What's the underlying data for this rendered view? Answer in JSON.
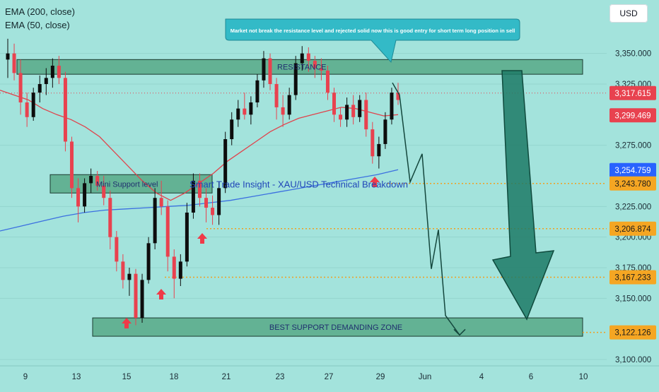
{
  "legend": {
    "ema200": "EMA (200, close)",
    "ema50": "EMA (50, close)"
  },
  "currency": "USD",
  "colors": {
    "background": "#a3e3dc",
    "bull_candle": "#0d0d0d",
    "bear_candle": "#e8424f",
    "ema200": "#3b6fe0",
    "ema50": "#e0434c",
    "zone_fill": "#2f8a5a",
    "projection_line": "#14473d",
    "big_arrow": "#1d7a66",
    "signal_arrow": "#ef3a48",
    "level_dotted": "#f0a020",
    "callout_bg": "#33bac7"
  },
  "chart_data": {
    "type": "candlestick",
    "annotations": {
      "callout": "Market not break the resistance level and rejected solid now this is good entry for short term long position in sell",
      "resistance_zone": "RESISTANCE",
      "mini_support_zone": "Mini Support level",
      "best_support_zone": "BEST SUPPORT DEMANDING ZONE",
      "title_overlay": "Smart Trade Insight - XAU/USD Technical Breakdown"
    },
    "y_axis": {
      "range": [
        3085,
        3385
      ],
      "ticks": [
        "3,350.000",
        "3,325.000",
        "3,275.000",
        "3,225.000",
        "3,200.000",
        "3,175.000",
        "3,150.000",
        "3,100.000"
      ],
      "tick_values": [
        3350,
        3325,
        3275,
        3225,
        3200,
        3175,
        3150,
        3100
      ]
    },
    "x_axis": {
      "ticks": [
        "9",
        "13",
        "15",
        "18",
        "21",
        "23",
        "27",
        "29",
        "Jun",
        "4",
        "6",
        "10"
      ]
    },
    "price_labels": [
      {
        "text": "3,317.615",
        "value": 3317.615,
        "color": "#e8424f"
      },
      {
        "text": "3,299.469",
        "value": 3299.469,
        "color": "#e8424f"
      },
      {
        "text": "3,254.759",
        "value": 3254.759,
        "color": "#2962ff"
      },
      {
        "text": "3,243.780",
        "value": 3243.78,
        "color": "#f5a623"
      },
      {
        "text": "3,206.874",
        "value": 3206.874,
        "color": "#f5a623"
      },
      {
        "text": "3,167.233",
        "value": 3167.233,
        "color": "#f5a623"
      },
      {
        "text": "3,122.126",
        "value": 3122.126,
        "color": "#f5a623"
      }
    ],
    "zones": [
      {
        "name": "resistance",
        "from": 3345,
        "to": 3333
      },
      {
        "name": "mini_support",
        "from": 3251,
        "to": 3236
      },
      {
        "name": "best_support",
        "from": 3134,
        "to": 3119
      }
    ],
    "candles": [
      [
        3345,
        3362,
        3330,
        3350
      ],
      [
        3350,
        3358,
        3328,
        3334
      ],
      [
        3334,
        3345,
        3300,
        3310
      ],
      [
        3310,
        3318,
        3290,
        3298
      ],
      [
        3298,
        3322,
        3295,
        3318
      ],
      [
        3318,
        3332,
        3310,
        3325
      ],
      [
        3325,
        3338,
        3316,
        3330
      ],
      [
        3330,
        3346,
        3322,
        3340
      ],
      [
        3340,
        3348,
        3325,
        3330
      ],
      [
        3330,
        3335,
        3270,
        3278
      ],
      [
        3278,
        3282,
        3232,
        3240
      ],
      [
        3240,
        3248,
        3212,
        3225
      ],
      [
        3225,
        3248,
        3220,
        3244
      ],
      [
        3244,
        3256,
        3236,
        3250
      ],
      [
        3250,
        3254,
        3238,
        3242
      ],
      [
        3242,
        3250,
        3226,
        3232
      ],
      [
        3232,
        3238,
        3190,
        3200
      ],
      [
        3200,
        3205,
        3172,
        3180
      ],
      [
        3180,
        3186,
        3158,
        3165
      ],
      [
        3165,
        3175,
        3152,
        3170
      ],
      [
        3170,
        3174,
        3128,
        3134
      ],
      [
        3134,
        3170,
        3130,
        3165
      ],
      [
        3165,
        3200,
        3162,
        3195
      ],
      [
        3195,
        3240,
        3190,
        3232
      ],
      [
        3232,
        3246,
        3218,
        3225
      ],
      [
        3225,
        3230,
        3172,
        3184
      ],
      [
        3184,
        3190,
        3150,
        3166
      ],
      [
        3166,
        3186,
        3160,
        3180
      ],
      [
        3180,
        3228,
        3176,
        3220
      ],
      [
        3220,
        3252,
        3215,
        3246
      ],
      [
        3246,
        3252,
        3225,
        3232
      ],
      [
        3232,
        3240,
        3212,
        3224
      ],
      [
        3224,
        3234,
        3210,
        3218
      ],
      [
        3218,
        3245,
        3210,
        3240
      ],
      [
        3240,
        3286,
        3236,
        3280
      ],
      [
        3280,
        3302,
        3275,
        3296
      ],
      [
        3296,
        3312,
        3290,
        3305
      ],
      [
        3305,
        3318,
        3296,
        3300
      ],
      [
        3300,
        3315,
        3292,
        3310
      ],
      [
        3310,
        3333,
        3306,
        3328
      ],
      [
        3328,
        3352,
        3322,
        3346
      ],
      [
        3346,
        3350,
        3320,
        3325
      ],
      [
        3325,
        3330,
        3296,
        3306
      ],
      [
        3306,
        3316,
        3290,
        3300
      ],
      [
        3300,
        3322,
        3296,
        3316
      ],
      [
        3316,
        3348,
        3312,
        3342
      ],
      [
        3342,
        3356,
        3336,
        3350
      ],
      [
        3350,
        3355,
        3335,
        3344
      ],
      [
        3344,
        3348,
        3330,
        3338
      ],
      [
        3338,
        3346,
        3328,
        3336
      ],
      [
        3336,
        3340,
        3312,
        3318
      ],
      [
        3318,
        3322,
        3294,
        3300
      ],
      [
        3300,
        3306,
        3290,
        3296
      ],
      [
        3296,
        3314,
        3290,
        3308
      ],
      [
        3308,
        3316,
        3292,
        3298
      ],
      [
        3298,
        3316,
        3294,
        3312
      ],
      [
        3312,
        3318,
        3282,
        3288
      ],
      [
        3288,
        3294,
        3260,
        3266
      ],
      [
        3266,
        3282,
        3256,
        3276
      ],
      [
        3276,
        3302,
        3272,
        3296
      ],
      [
        3296,
        3322,
        3292,
        3318
      ],
      [
        3318,
        3326,
        3308,
        3312
      ]
    ],
    "ema50": [
      3320,
      3316,
      3312,
      3305,
      3300,
      3296,
      3290,
      3282,
      3270,
      3258,
      3246,
      3236,
      3230,
      3236,
      3244,
      3252,
      3262,
      3270,
      3278,
      3286,
      3292,
      3297,
      3300,
      3303,
      3306,
      3305,
      3302,
      3299,
      3300
    ],
    "ema200": [
      3205,
      3209,
      3213,
      3217,
      3220,
      3222,
      3223,
      3224,
      3225,
      3226,
      3228,
      3230,
      3233,
      3236,
      3239,
      3242,
      3245,
      3248,
      3251,
      3255
    ],
    "projection": [
      [
        3317,
        3326
      ],
      [
        3322,
        3316
      ],
      [
        3305,
        3245
      ],
      [
        3290,
        3268
      ],
      [
        3255,
        3174
      ],
      [
        3275,
        3206
      ],
      [
        3160,
        3136
      ],
      [
        3140,
        3120
      ]
    ]
  }
}
